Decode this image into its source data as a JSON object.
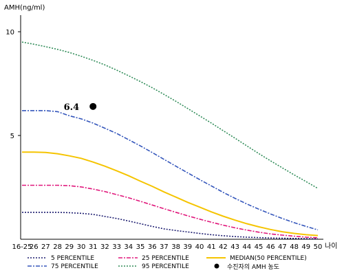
{
  "chart_data": {
    "type": "line",
    "ylabel": "AMH(ng/ml)",
    "xlabel": "나이",
    "categories": [
      "16-25",
      "26",
      "27",
      "28",
      "29",
      "30",
      "31",
      "32",
      "33",
      "34",
      "35",
      "36",
      "37",
      "38",
      "39",
      "40",
      "41",
      "42",
      "43",
      "44",
      "45",
      "46",
      "47",
      "48",
      "49",
      "50"
    ],
    "yticks": [
      5,
      10
    ],
    "ylim": [
      0,
      10.8
    ],
    "grid": false,
    "series": [
      {
        "name": "5 PERCENTILE",
        "color": "#1a1a6e",
        "dash": "2,2",
        "values": [
          1.3,
          1.3,
          1.3,
          1.3,
          1.28,
          1.25,
          1.2,
          1.1,
          1.0,
          0.88,
          0.75,
          0.62,
          0.5,
          0.42,
          0.35,
          0.28,
          0.22,
          0.17,
          0.13,
          0.1,
          0.08,
          0.06,
          0.05,
          0.04,
          0.03,
          0.02
        ]
      },
      {
        "name": "25 PERCENTILE",
        "color": "#e0157a",
        "dash": "6,2,2,2",
        "values": [
          2.6,
          2.6,
          2.6,
          2.6,
          2.58,
          2.52,
          2.42,
          2.3,
          2.15,
          2.0,
          1.83,
          1.65,
          1.47,
          1.3,
          1.13,
          0.97,
          0.82,
          0.68,
          0.55,
          0.44,
          0.34,
          0.26,
          0.2,
          0.15,
          0.1,
          0.07
        ]
      },
      {
        "name": "MEDIAN(50 PERCENTILE)",
        "color": "#f5c400",
        "dash": "",
        "values": [
          4.2,
          4.2,
          4.18,
          4.12,
          4.02,
          3.9,
          3.72,
          3.52,
          3.3,
          3.06,
          2.8,
          2.55,
          2.28,
          2.03,
          1.78,
          1.55,
          1.32,
          1.11,
          0.92,
          0.75,
          0.6,
          0.47,
          0.36,
          0.28,
          0.22,
          0.18
        ]
      },
      {
        "name": "75 PERCENTILE",
        "color": "#3355bb",
        "dash": "6,2,2,2",
        "values": [
          6.2,
          6.2,
          6.2,
          6.15,
          5.95,
          5.8,
          5.6,
          5.35,
          5.1,
          4.8,
          4.5,
          4.18,
          3.85,
          3.52,
          3.2,
          2.88,
          2.57,
          2.26,
          1.97,
          1.7,
          1.45,
          1.22,
          1.0,
          0.8,
          0.62,
          0.45
        ]
      },
      {
        "name": "95 PERCENTILE",
        "color": "#2e8b57",
        "dash": "2,2",
        "values": [
          9.5,
          9.4,
          9.28,
          9.15,
          9.0,
          8.82,
          8.62,
          8.4,
          8.15,
          7.88,
          7.6,
          7.3,
          6.98,
          6.65,
          6.3,
          5.95,
          5.6,
          5.23,
          4.87,
          4.5,
          4.13,
          3.78,
          3.44,
          3.1,
          2.78,
          2.45
        ]
      }
    ],
    "points": [
      {
        "name": "수진자의 AMH 농도",
        "x": "31",
        "y": 6.4,
        "label": "6.4",
        "color": "#000000"
      }
    ],
    "legend_placement": "bottom"
  }
}
